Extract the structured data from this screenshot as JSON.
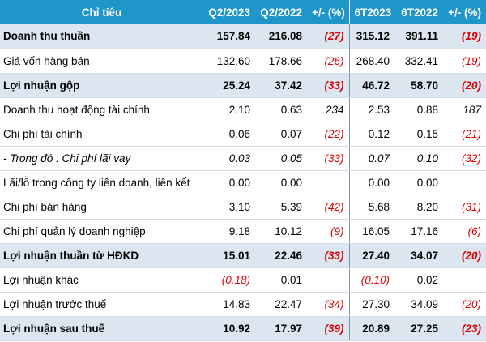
{
  "table": {
    "headers": [
      "Chỉ tiêu",
      "Q2/2023",
      "Q2/2022",
      "+/- (%)",
      "6T2023",
      "6T2022",
      "+/- (%)"
    ],
    "rows": [
      {
        "cells": [
          "Doanh thu thuần",
          "157.84",
          "216.08",
          "(27)",
          "315.12",
          "391.11",
          "(19)"
        ],
        "style": "bold highlight"
      },
      {
        "cells": [
          "Giá vốn hàng bán",
          "132.60",
          "178.66",
          "(26)",
          "268.40",
          "332.41",
          "(19)"
        ],
        "style": ""
      },
      {
        "cells": [
          "Lợi nhuận gộp",
          "25.24",
          "37.42",
          "(33)",
          "46.72",
          "58.70",
          "(20)"
        ],
        "style": "bold highlight"
      },
      {
        "cells": [
          "Doanh thu hoạt động tài chính",
          "2.10",
          "0.63",
          "234",
          "2.53",
          "0.88",
          "187"
        ],
        "style": ""
      },
      {
        "cells": [
          "Chi phí tài chính",
          "0.06",
          "0.07",
          "(22)",
          "0.12",
          "0.15",
          "(21)"
        ],
        "style": ""
      },
      {
        "cells": [
          "- Trong đó : Chi phí lãi vay",
          "0.03",
          "0.05",
          "(33)",
          "0.07",
          "0.10",
          "(32)"
        ],
        "style": "italic"
      },
      {
        "cells": [
          "Lãi/lỗ trong công ty liên doanh, liên kết",
          "0.00",
          "0.00",
          "",
          "0.00",
          "0.00",
          ""
        ],
        "style": ""
      },
      {
        "cells": [
          "Chi phí bán hàng",
          "3.10",
          "5.39",
          "(42)",
          "5.68",
          "8.20",
          "(31)"
        ],
        "style": ""
      },
      {
        "cells": [
          "Chi phí quản lý doanh nghiệp",
          "9.18",
          "10.12",
          "(9)",
          "16.05",
          "17.16",
          "(6)"
        ],
        "style": ""
      },
      {
        "cells": [
          "Lợi nhuận thuần từ HĐKD",
          "15.01",
          "22.46",
          "(33)",
          "27.40",
          "34.07",
          "(20)"
        ],
        "style": "bold highlight"
      },
      {
        "cells": [
          "Lợi nhuận khác",
          "(0.18)",
          "0.01",
          "",
          "(0.10)",
          "0.02",
          ""
        ],
        "style": ""
      },
      {
        "cells": [
          "Lợi nhuận trước thuế",
          "14.83",
          "22.47",
          "(34)",
          "27.30",
          "34.09",
          "(20)"
        ],
        "style": ""
      },
      {
        "cells": [
          "Lợi nhuận sau thuế",
          "10.92",
          "17.97",
          "(39)",
          "20.89",
          "27.25",
          "(23)"
        ],
        "style": "bold highlight"
      }
    ]
  }
}
